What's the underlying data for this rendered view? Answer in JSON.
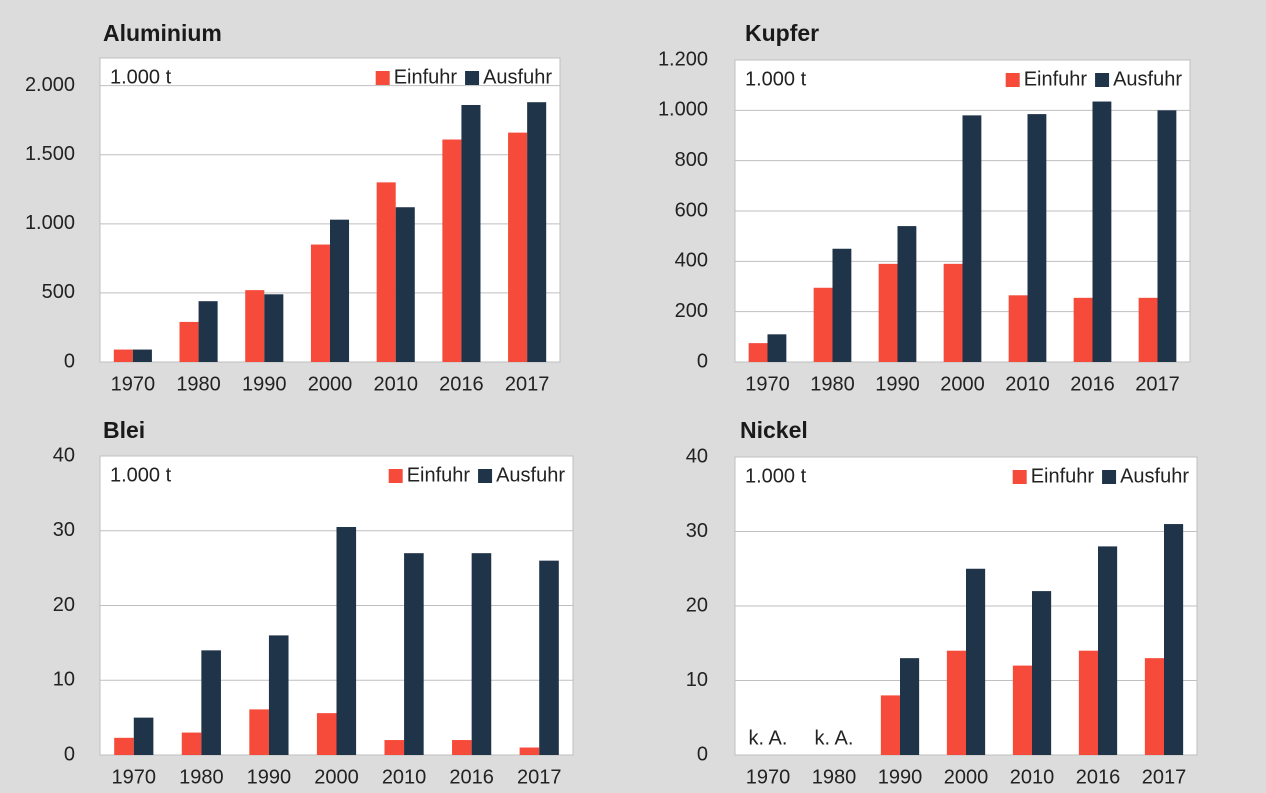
{
  "chart_data": [
    {
      "type": "bar",
      "title": "Aluminium",
      "unit_label": "1.000 t",
      "legend": "top-right",
      "grid": true,
      "categories": [
        "1970",
        "1980",
        "1990",
        "2000",
        "2010",
        "2016",
        "2017"
      ],
      "series": [
        {
          "name": "Einfuhr",
          "color": "#f64a3a",
          "values": [
            90,
            290,
            520,
            850,
            1300,
            1610,
            1660
          ]
        },
        {
          "name": "Ausfuhr",
          "color": "#1f3349",
          "values": [
            90,
            440,
            490,
            1030,
            1120,
            1860,
            1880
          ]
        }
      ],
      "ylim": [
        0,
        2200
      ],
      "yticks": [
        0,
        500,
        {
          "value": 1000,
          "label": "1.000"
        },
        {
          "value": 1500,
          "label": "1.500"
        },
        {
          "value": 2000,
          "label": "2.000"
        }
      ]
    },
    {
      "type": "bar",
      "title": "Kupfer",
      "unit_label": "1.000 t",
      "legend": "top-right",
      "grid": true,
      "categories": [
        "1970",
        "1980",
        "1990",
        "2000",
        "2010",
        "2016",
        "2017"
      ],
      "series": [
        {
          "name": "Einfuhr",
          "color": "#f64a3a",
          "values": [
            75,
            295,
            390,
            390,
            265,
            255,
            255
          ]
        },
        {
          "name": "Ausfuhr",
          "color": "#1f3349",
          "values": [
            110,
            450,
            540,
            980,
            985,
            1035,
            1000
          ]
        }
      ],
      "ylim": [
        0,
        1200
      ],
      "yticks": [
        0,
        200,
        400,
        600,
        800,
        {
          "value": 1000,
          "label": "1.000"
        },
        {
          "value": 1200,
          "label": "1.200"
        }
      ]
    },
    {
      "type": "bar",
      "title": "Blei",
      "unit_label": "1.000 t",
      "legend": "top-right",
      "grid": true,
      "categories": [
        "1970",
        "1980",
        "1990",
        "2000",
        "2010",
        "2016",
        "2017"
      ],
      "series": [
        {
          "name": "Einfuhr",
          "color": "#f64a3a",
          "values": [
            2.3,
            3,
            6.1,
            5.6,
            2,
            2,
            1
          ]
        },
        {
          "name": "Ausfuhr",
          "color": "#1f3349",
          "values": [
            5,
            14,
            16,
            30.5,
            27,
            27,
            26
          ]
        }
      ],
      "ylim": [
        0,
        40
      ],
      "yticks": [
        0,
        10,
        20,
        30,
        40
      ]
    },
    {
      "type": "bar",
      "title": "Nickel",
      "unit_label": "1.000 t",
      "legend": "top-right",
      "grid": true,
      "categories": [
        "1970",
        "1980",
        "1990",
        "2000",
        "2010",
        "2016",
        "2017"
      ],
      "series": [
        {
          "name": "Einfuhr",
          "color": "#f64a3a",
          "values": [
            null,
            null,
            8,
            14,
            12,
            14,
            13
          ]
        },
        {
          "name": "Ausfuhr",
          "color": "#1f3349",
          "values": [
            null,
            null,
            13,
            25,
            22,
            28,
            31
          ]
        }
      ],
      "annotations": [
        "k. A.",
        "k. A."
      ],
      "ylim": [
        0,
        40
      ],
      "yticks": [
        0,
        10,
        20,
        30,
        40
      ]
    }
  ]
}
